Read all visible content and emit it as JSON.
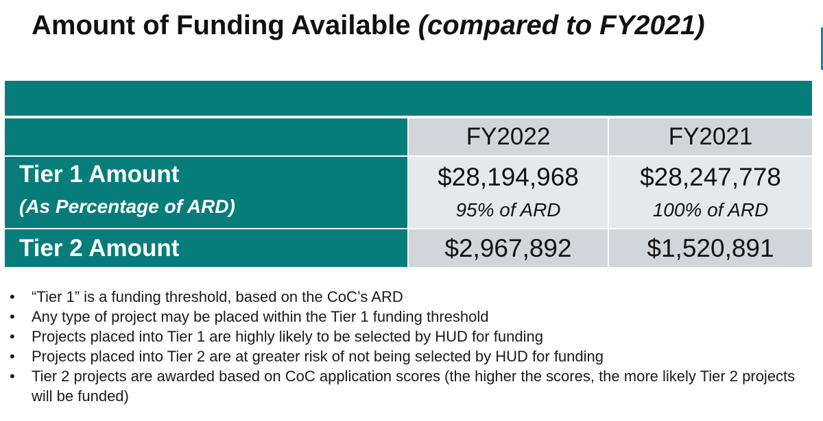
{
  "title": {
    "main": "Amount of Funding Available ",
    "italic": "(compared to FY2021)"
  },
  "table": {
    "columns": [
      "FY2022",
      "FY2021"
    ],
    "rows": [
      {
        "label": "Tier 1 Amount",
        "sublabel": "(As Percentage of ARD)",
        "values": [
          "$28,194,968",
          "$28,247,778"
        ],
        "percentages": [
          "95% of ARD",
          "100% of ARD"
        ]
      },
      {
        "label": "Tier 2 Amount",
        "values": [
          "$2,967,892",
          "$1,520,891"
        ]
      }
    ]
  },
  "bullets": [
    "“Tier 1” is a funding threshold, based on the CoC’s ARD",
    "Any type of project may be placed within the Tier 1 funding threshold",
    "Projects placed into Tier 1 are highly likely to be selected by HUD for funding",
    "Projects placed into Tier 2 are at greater risk of not being selected by HUD for funding",
    "Tier 2 projects are awarded based on CoC application scores (the higher the scores, the more likely Tier 2 projects will be funded)"
  ],
  "bullet_glyph": "•",
  "colors": {
    "teal": "#077d7b",
    "header_gray": "#d0d6da",
    "light_gray": "#e6e9eb",
    "accent_blue": "#1a7fae"
  }
}
